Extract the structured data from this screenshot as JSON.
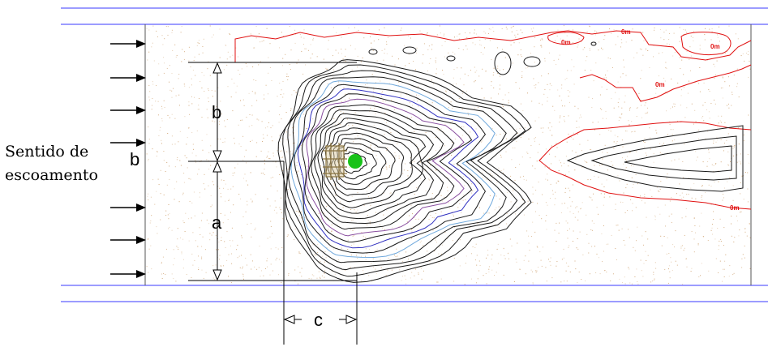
{
  "flow_label": {
    "line1": "Sentido de",
    "line2": "escoamento"
  },
  "dimension_labels": {
    "a": "a",
    "b": "b",
    "c": "c",
    "partial": "b"
  },
  "contour_labels": [
    "0m",
    "0m",
    "0m",
    "0m",
    "0m",
    "0m"
  ],
  "colors": {
    "channel_walls": "#3a3aff",
    "zero_contour": "#e01010",
    "scour_contours": "#1a1a1a",
    "intermediate_contours_blue": "#3030c0",
    "intermediate_contours_lightblue": "#6fa8dc",
    "intermediate_contours_purple": "#8a4fa0",
    "pier": "#8a7440",
    "pier_center": "#19c219",
    "sand": "#c8945a"
  }
}
